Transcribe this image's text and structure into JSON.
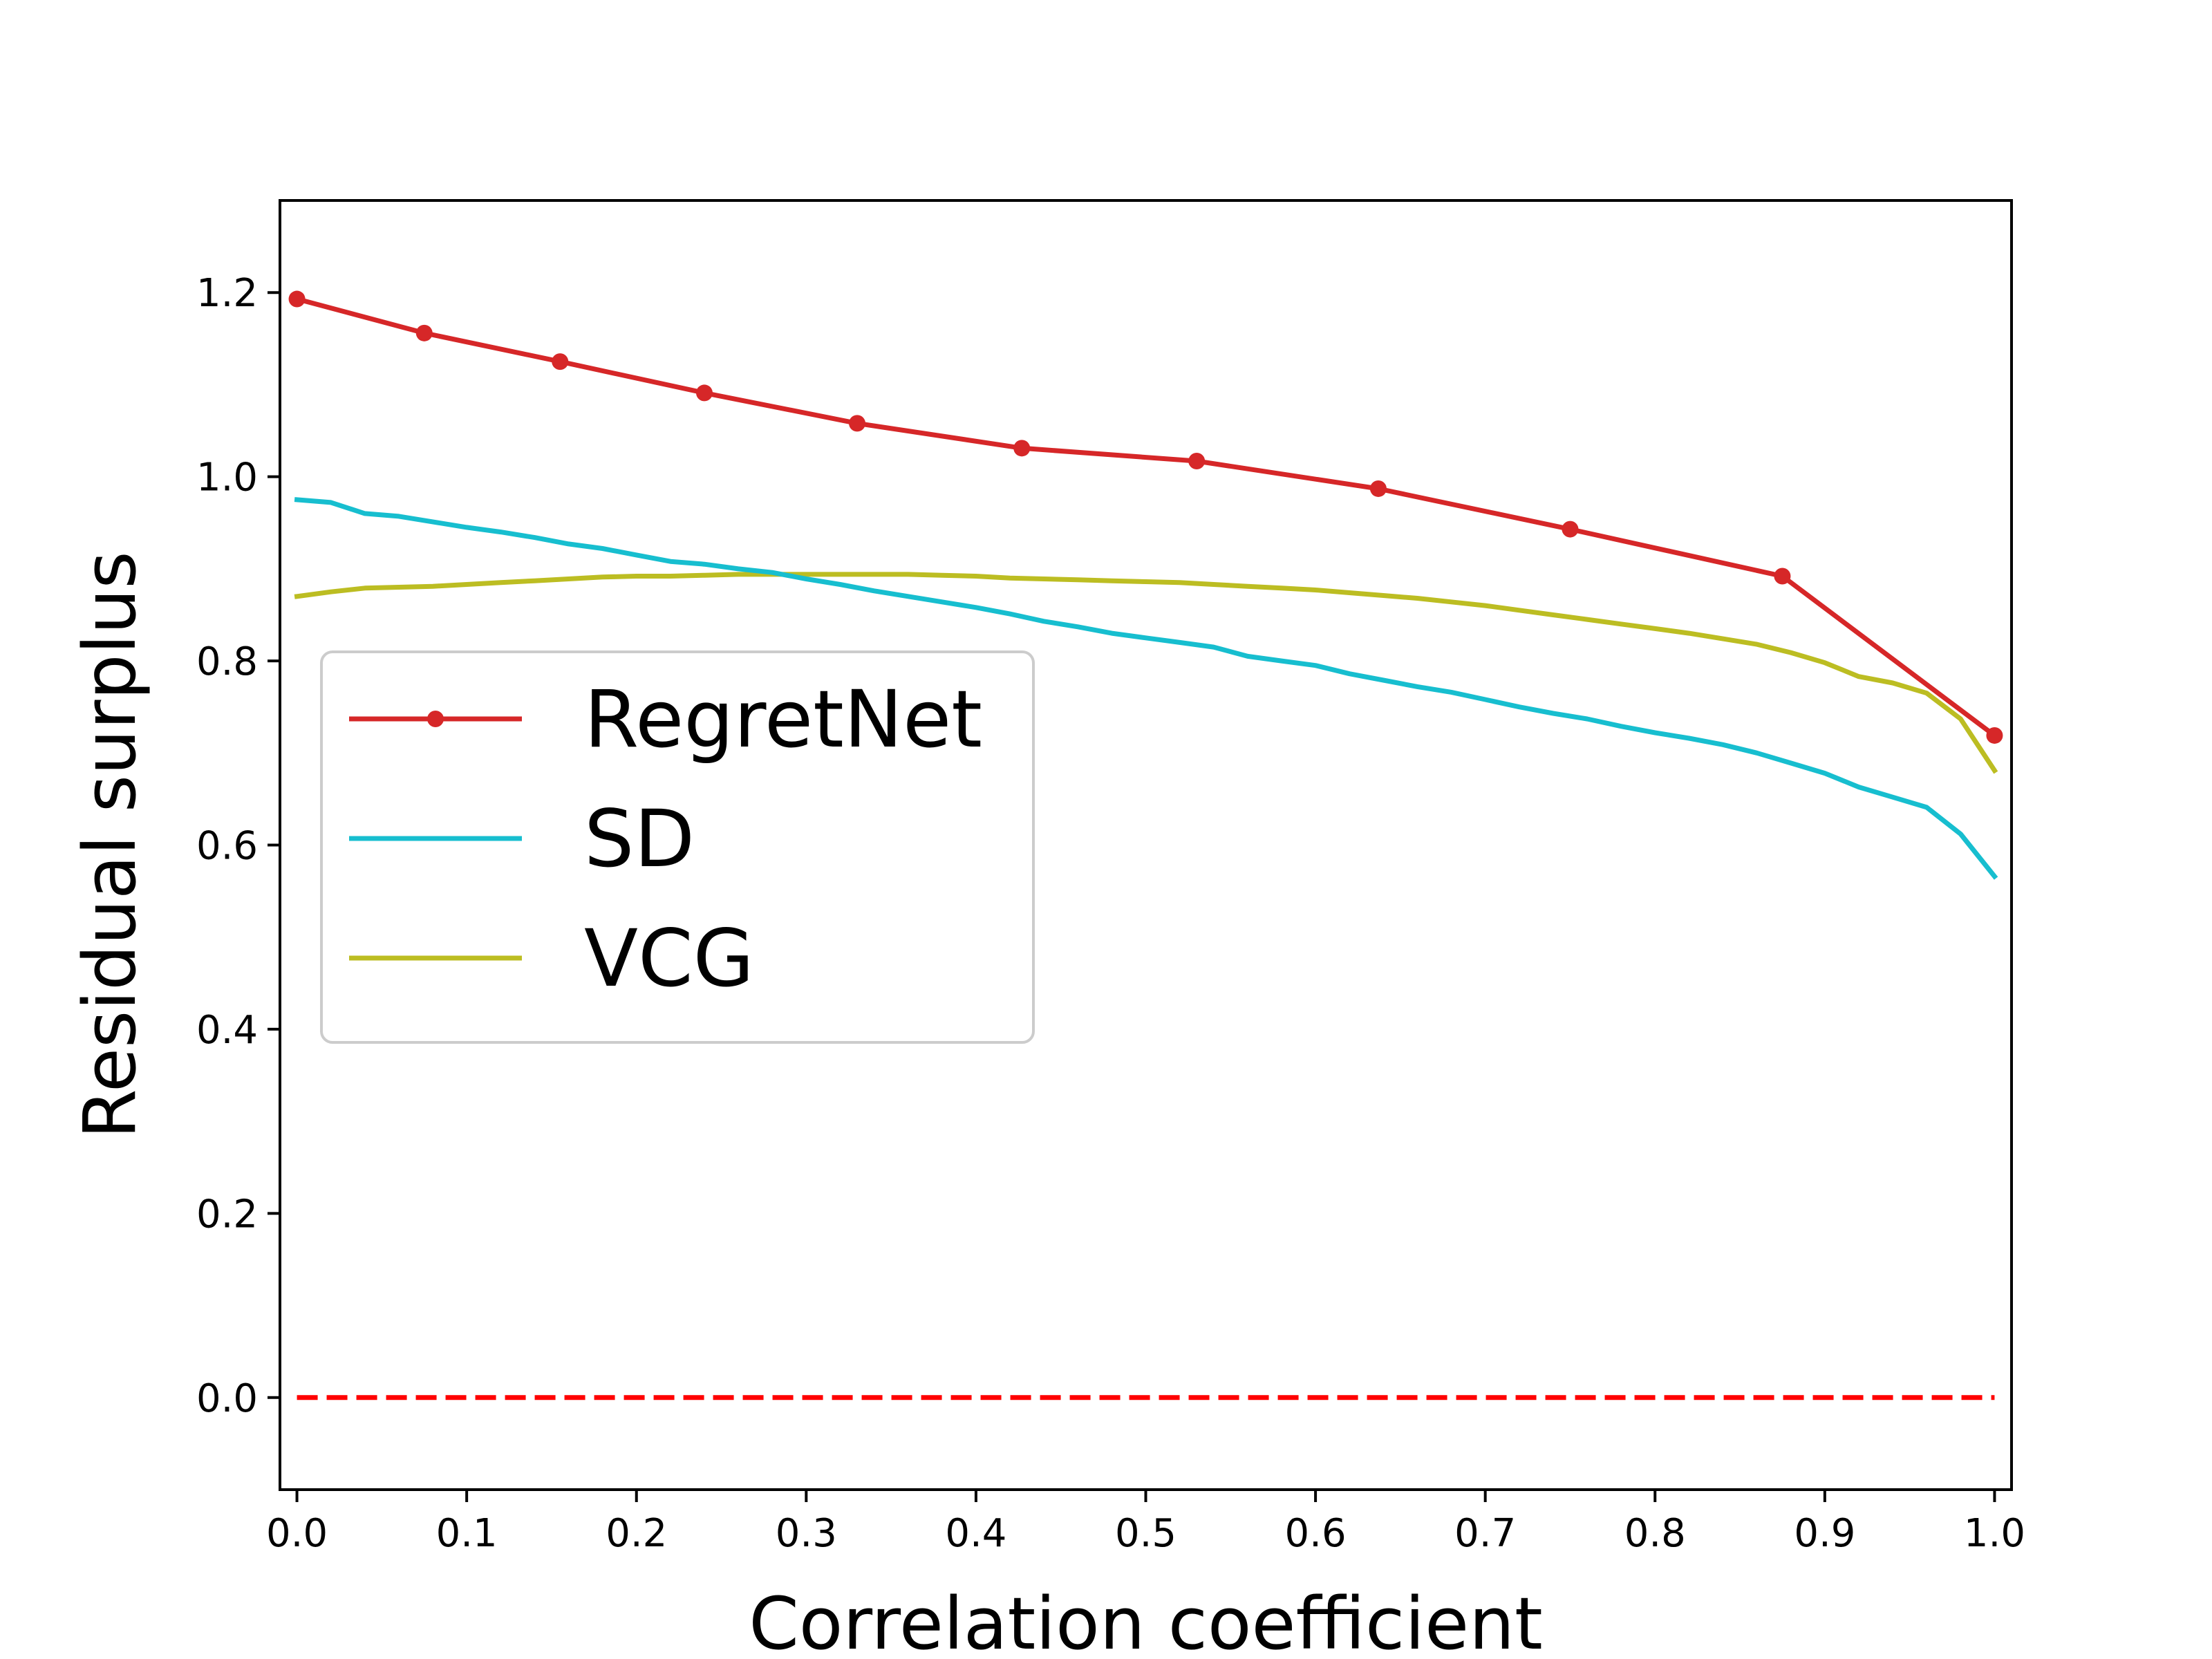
{
  "chart_data": {
    "type": "line",
    "title": "",
    "xlabel": "Correlation coefficient",
    "ylabel": "Residual surplus",
    "xlim": [
      -0.01,
      1.01
    ],
    "ylim": [
      -0.1,
      1.3
    ],
    "xticks": [
      0.0,
      0.1,
      0.2,
      0.3,
      0.4,
      0.5,
      0.6,
      0.7,
      0.8,
      0.9,
      1.0
    ],
    "xtick_labels": [
      "0.0",
      "0.1",
      "0.2",
      "0.3",
      "0.4",
      "0.5",
      "0.6",
      "0.7",
      "0.8",
      "0.9",
      "1.0"
    ],
    "yticks": [
      0.0,
      0.2,
      0.4,
      0.6,
      0.8,
      1.0,
      1.2
    ],
    "ytick_labels": [
      "0.0",
      "0.2",
      "0.4",
      "0.6",
      "0.8",
      "1.0",
      "1.2"
    ],
    "grid": false,
    "legend_position": "center-left",
    "series": [
      {
        "name": "RegretNet",
        "color": "#d62728",
        "marker": "circle",
        "x": [
          0.0,
          0.075,
          0.155,
          0.24,
          0.33,
          0.427,
          0.53,
          0.637,
          0.75,
          0.875,
          1.0
        ],
        "y": [
          1.193,
          1.156,
          1.125,
          1.091,
          1.058,
          1.031,
          1.017,
          0.987,
          0.943,
          0.892,
          0.719
        ]
      },
      {
        "name": "SD",
        "color": "#17becf",
        "marker": "none",
        "x": [
          0.0,
          0.02,
          0.04,
          0.06,
          0.08,
          0.1,
          0.12,
          0.14,
          0.16,
          0.18,
          0.2,
          0.22,
          0.24,
          0.26,
          0.28,
          0.3,
          0.32,
          0.34,
          0.36,
          0.38,
          0.4,
          0.42,
          0.44,
          0.46,
          0.48,
          0.5,
          0.52,
          0.54,
          0.56,
          0.58,
          0.6,
          0.62,
          0.64,
          0.66,
          0.68,
          0.7,
          0.72,
          0.74,
          0.76,
          0.78,
          0.8,
          0.82,
          0.84,
          0.86,
          0.88,
          0.9,
          0.92,
          0.94,
          0.96,
          0.98,
          1.0
        ],
        "y": [
          0.975,
          0.972,
          0.96,
          0.957,
          0.951,
          0.945,
          0.94,
          0.934,
          0.927,
          0.922,
          0.915,
          0.908,
          0.905,
          0.9,
          0.896,
          0.889,
          0.883,
          0.876,
          0.87,
          0.864,
          0.858,
          0.851,
          0.843,
          0.837,
          0.83,
          0.825,
          0.82,
          0.815,
          0.805,
          0.8,
          0.795,
          0.786,
          0.779,
          0.772,
          0.766,
          0.758,
          0.75,
          0.743,
          0.737,
          0.729,
          0.722,
          0.716,
          0.709,
          0.7,
          0.689,
          0.678,
          0.663,
          0.652,
          0.641,
          0.612,
          0.566
        ]
      },
      {
        "name": "VCG",
        "color": "#bcbd22",
        "marker": "none",
        "x": [
          0.0,
          0.02,
          0.04,
          0.06,
          0.08,
          0.1,
          0.12,
          0.14,
          0.16,
          0.18,
          0.2,
          0.22,
          0.24,
          0.26,
          0.28,
          0.3,
          0.32,
          0.34,
          0.36,
          0.38,
          0.4,
          0.42,
          0.44,
          0.46,
          0.48,
          0.5,
          0.52,
          0.54,
          0.56,
          0.58,
          0.6,
          0.62,
          0.64,
          0.66,
          0.68,
          0.7,
          0.72,
          0.74,
          0.76,
          0.78,
          0.8,
          0.82,
          0.84,
          0.86,
          0.88,
          0.9,
          0.92,
          0.94,
          0.96,
          0.98,
          1.0
        ],
        "y": [
          0.87,
          0.875,
          0.879,
          0.88,
          0.881,
          0.883,
          0.885,
          0.887,
          0.889,
          0.891,
          0.892,
          0.892,
          0.893,
          0.894,
          0.894,
          0.894,
          0.894,
          0.894,
          0.894,
          0.893,
          0.892,
          0.89,
          0.889,
          0.888,
          0.887,
          0.886,
          0.885,
          0.883,
          0.881,
          0.879,
          0.877,
          0.874,
          0.871,
          0.868,
          0.864,
          0.86,
          0.855,
          0.85,
          0.845,
          0.84,
          0.835,
          0.83,
          0.824,
          0.818,
          0.809,
          0.798,
          0.783,
          0.776,
          0.765,
          0.737,
          0.681
        ]
      }
    ],
    "reference_line": {
      "y": 0.0,
      "color": "#ff0000",
      "style": "dashed"
    }
  }
}
